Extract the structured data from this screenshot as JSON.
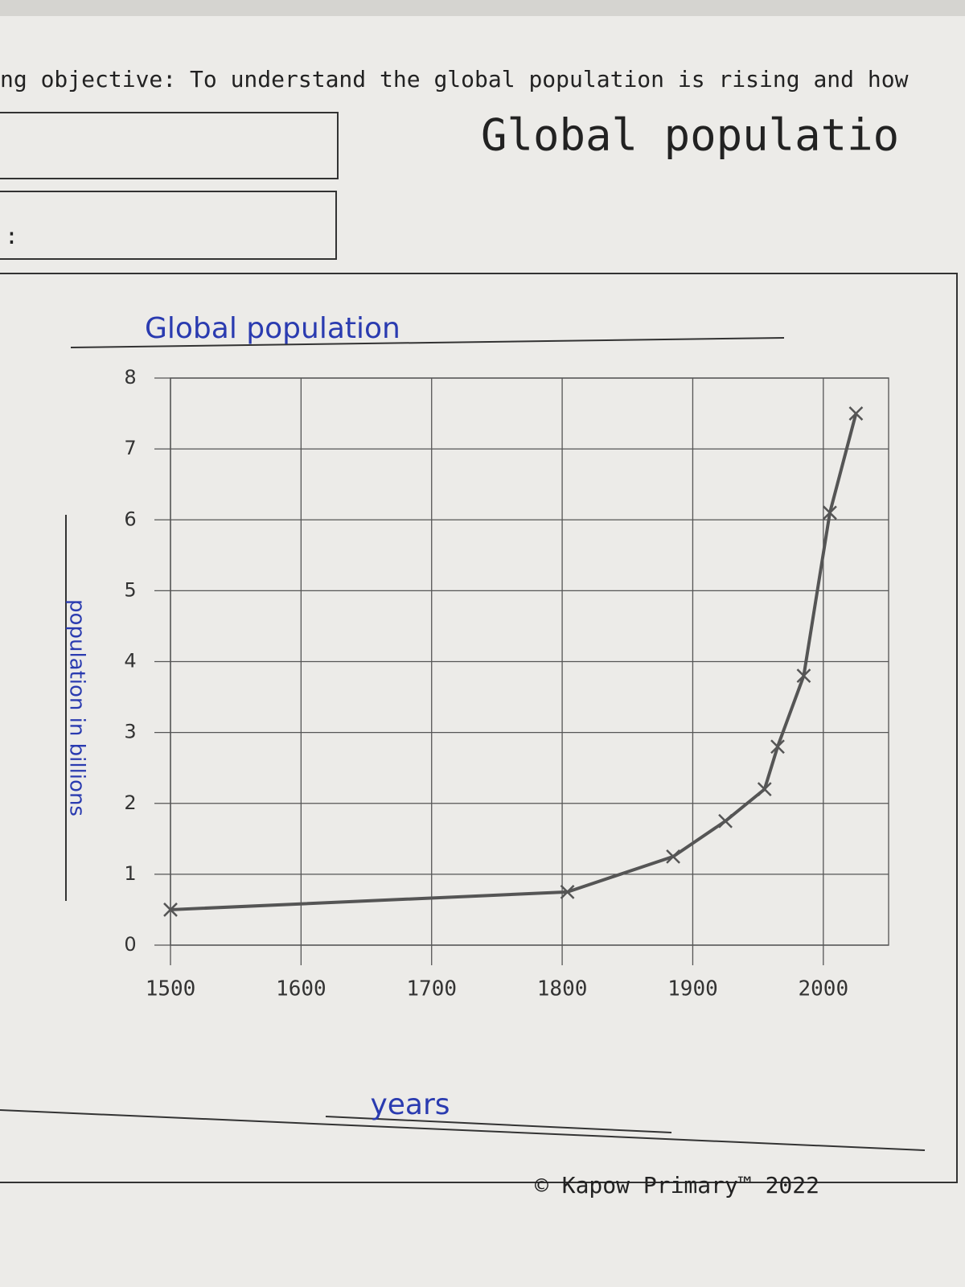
{
  "header": {
    "objective": "ng objective: To understand the global population is rising and how",
    "heading": "Global populatio",
    "field_label": ":"
  },
  "chart_data": {
    "type": "line",
    "title": "Global population",
    "x_label": "years",
    "y_label": "population in billions",
    "x": [
      1500,
      1804,
      1885,
      1925,
      1955,
      1965,
      1985,
      2005,
      2025
    ],
    "values": [
      0.5,
      0.75,
      1.25,
      1.75,
      2.2,
      2.8,
      3.8,
      6.1,
      7.5
    ],
    "color": "#555555",
    "xlim": [
      1500,
      2050
    ],
    "xticks": [
      1500,
      1600,
      1700,
      1800,
      1900,
      2000
    ],
    "ylim": [
      0,
      8
    ],
    "yticks": [
      0,
      1,
      2,
      3,
      4,
      5,
      6,
      7,
      8
    ],
    "grid": true
  },
  "footer": "© Kapow Primary™ 2022"
}
